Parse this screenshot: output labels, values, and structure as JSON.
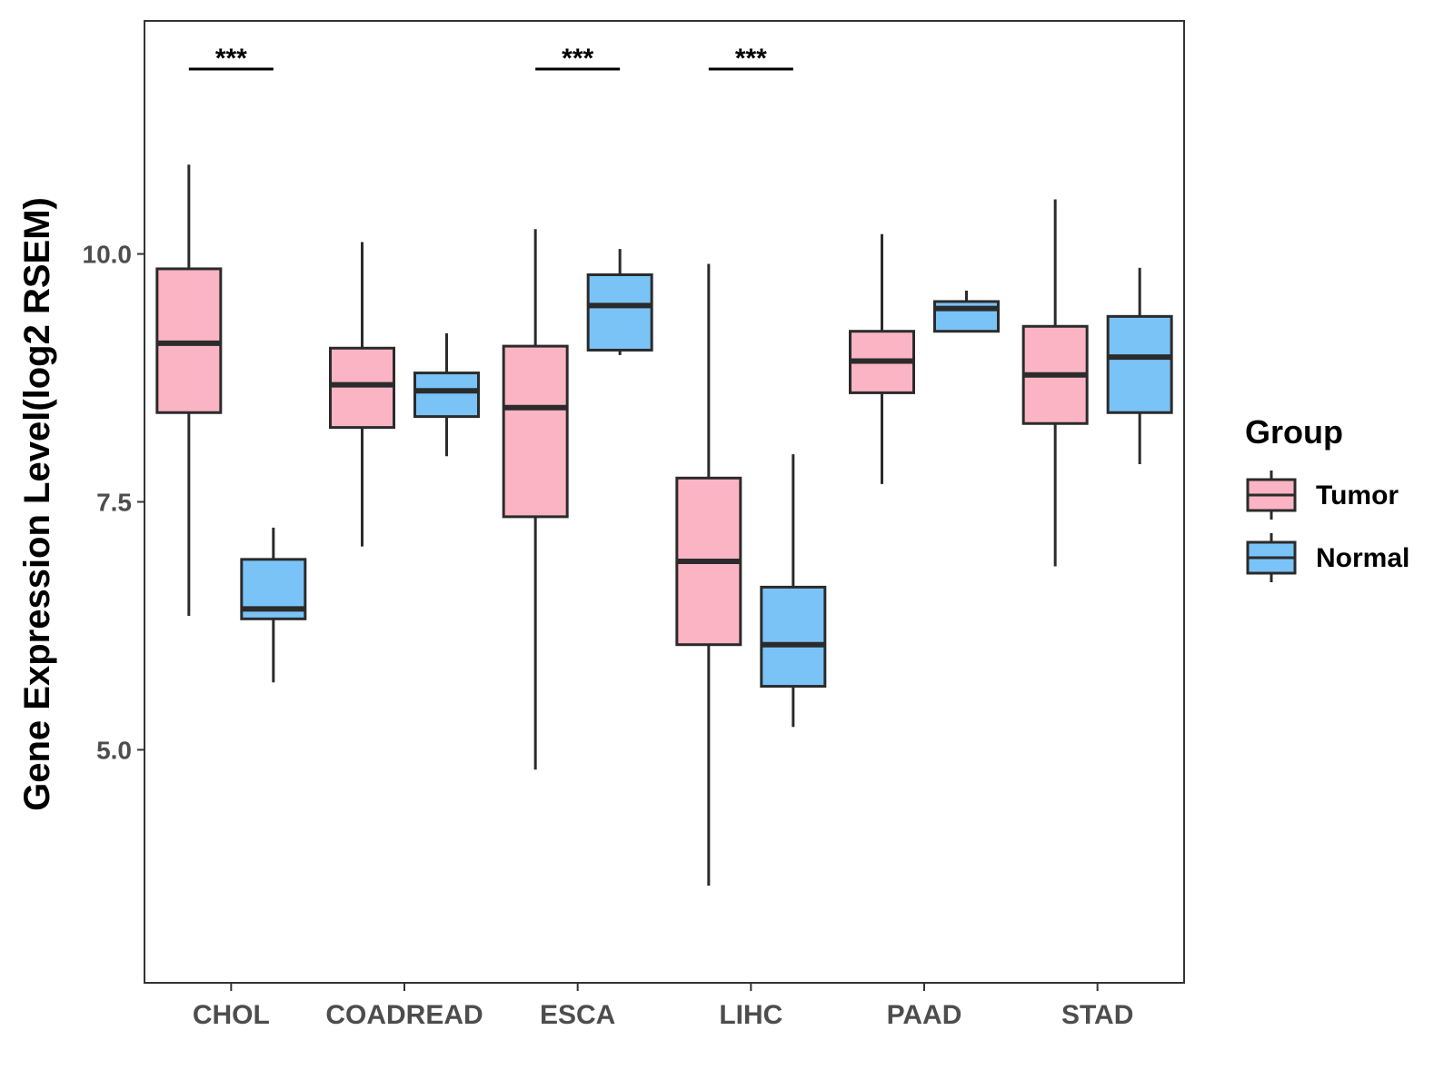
{
  "chart_data": {
    "type": "boxplot",
    "title": "",
    "xlabel": "",
    "ylabel": "Gene Expression Level(log2 RSEM)",
    "ylim": [
      2.65,
      12.35
    ],
    "yticks": [
      5.0,
      7.5,
      10.0
    ],
    "ytick_labels": [
      "5.0",
      "7.5",
      "10.0"
    ],
    "grid": false,
    "categories": [
      "CHOL",
      "COADREAD",
      "ESCA",
      "LIHC",
      "PAAD",
      "STAD"
    ],
    "legend": {
      "title": "Group",
      "position": "right",
      "entries": [
        "Tumor",
        "Normal"
      ]
    },
    "series": [
      {
        "name": "Tumor",
        "color": "#fbb4c3",
        "boxes": [
          {
            "category": "CHOL",
            "whisker_low": 6.35,
            "q1": 8.4,
            "median": 9.1,
            "q3": 9.85,
            "whisker_high": 10.9
          },
          {
            "category": "COADREAD",
            "whisker_low": 7.05,
            "q1": 8.25,
            "median": 8.68,
            "q3": 9.05,
            "whisker_high": 10.12
          },
          {
            "category": "ESCA",
            "whisker_low": 4.8,
            "q1": 7.35,
            "median": 8.45,
            "q3": 9.07,
            "whisker_high": 10.25
          },
          {
            "category": "LIHC",
            "whisker_low": 3.63,
            "q1": 6.06,
            "median": 6.9,
            "q3": 7.74,
            "whisker_high": 9.9
          },
          {
            "category": "PAAD",
            "whisker_low": 7.68,
            "q1": 8.6,
            "median": 8.92,
            "q3": 9.22,
            "whisker_high": 10.2
          },
          {
            "category": "STAD",
            "whisker_low": 6.85,
            "q1": 8.29,
            "median": 8.78,
            "q3": 9.27,
            "whisker_high": 10.55
          }
        ]
      },
      {
        "name": "Normal",
        "color": "#7ac3f7",
        "boxes": [
          {
            "category": "CHOL",
            "whisker_low": 5.68,
            "q1": 6.32,
            "median": 6.42,
            "q3": 6.92,
            "whisker_high": 7.24
          },
          {
            "category": "COADREAD",
            "whisker_low": 7.96,
            "q1": 8.36,
            "median": 8.62,
            "q3": 8.8,
            "whisker_high": 9.2
          },
          {
            "category": "ESCA",
            "whisker_low": 8.98,
            "q1": 9.03,
            "median": 9.48,
            "q3": 9.79,
            "whisker_high": 10.05
          },
          {
            "category": "LIHC",
            "whisker_low": 5.23,
            "q1": 5.64,
            "median": 6.06,
            "q3": 6.64,
            "whisker_high": 7.98
          },
          {
            "category": "PAAD",
            "whisker_low": 9.22,
            "q1": 9.22,
            "median": 9.45,
            "q3": 9.52,
            "whisker_high": 9.63
          },
          {
            "category": "STAD",
            "whisker_low": 7.88,
            "q1": 8.4,
            "median": 8.96,
            "q3": 9.37,
            "whisker_high": 9.86
          }
        ]
      }
    ],
    "annotations": [
      {
        "category": "CHOL",
        "text": "***"
      },
      {
        "category": "ESCA",
        "text": "***"
      },
      {
        "category": "LIHC",
        "text": "***"
      }
    ]
  }
}
